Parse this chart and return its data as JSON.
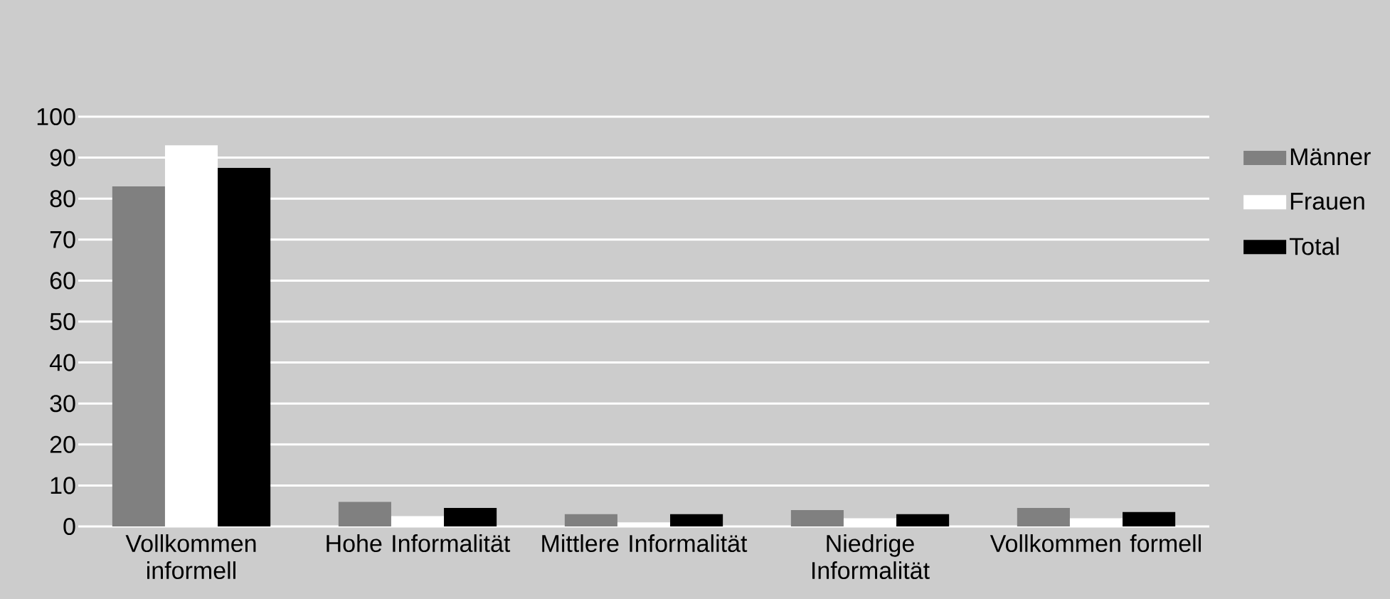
{
  "chart_data": {
    "type": "bar",
    "categories": [
      "Vollkommen informell",
      "Hohe Informalität",
      "Mittlere Informalität",
      "Niedrige Informalität",
      "Vollkommen formell"
    ],
    "series": [
      {
        "name": "Männer",
        "color": "#808080",
        "values": [
          83,
          6,
          3,
          4,
          4.5
        ]
      },
      {
        "name": "Frauen",
        "color": "#ffffff",
        "values": [
          93,
          2.5,
          1,
          2,
          2
        ]
      },
      {
        "name": "Total",
        "color": "#000000",
        "values": [
          87.5,
          4.5,
          3,
          3,
          3.5
        ]
      }
    ],
    "ylim": [
      0,
      100
    ],
    "yticks": [
      0,
      10,
      20,
      30,
      40,
      50,
      60,
      70,
      80,
      90,
      100
    ],
    "grid": "y",
    "legend": "right"
  }
}
